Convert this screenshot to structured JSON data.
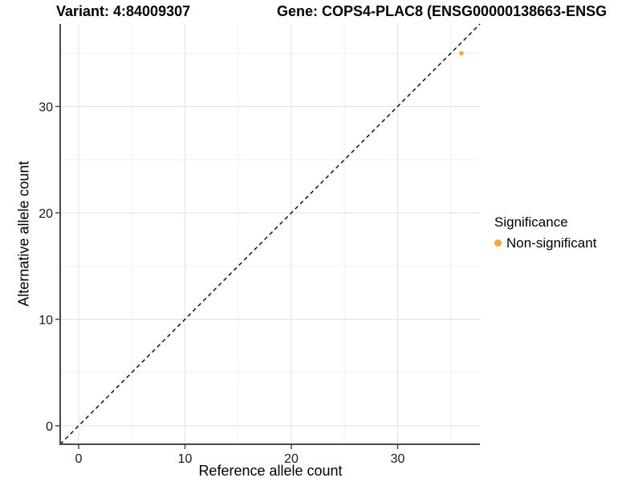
{
  "chart_data": {
    "type": "scatter",
    "title_left": "Variant: 4:84009307",
    "title_right": "Gene: COPS4-PLAC8 (ENSG00000138663-ENSG",
    "xlabel": "Reference allele count",
    "ylabel": "Alternative allele count",
    "xlim": [
      -1.8,
      37.9
    ],
    "ylim": [
      -1.8,
      37.9
    ],
    "x_ticks": [
      0,
      10,
      20,
      30
    ],
    "y_ticks": [
      0,
      10,
      20,
      30
    ],
    "x_minor_ticks": [
      5,
      15,
      25,
      35
    ],
    "y_minor_ticks": [
      5,
      15,
      25,
      35
    ],
    "grid": "on",
    "reference_line": {
      "equation": "y = x",
      "style": "dashed",
      "color": "#000000"
    },
    "series": [
      {
        "name": "Non-significant",
        "color": "#F9A33C",
        "points": [
          {
            "x": 36,
            "y": 35
          }
        ]
      }
    ],
    "legend": {
      "position": "right",
      "title": "Significance",
      "items": [
        {
          "label": "Non-significant",
          "color": "#F9A33C"
        }
      ]
    }
  },
  "colors": {
    "background": "#FFFFFF",
    "grid_major": "#E5E5E5",
    "grid_minor": "#F0F0F0",
    "axis_line": "#4A4A4A",
    "tick_text": "#1A1A1A",
    "point_orange": "#F9A33C"
  }
}
